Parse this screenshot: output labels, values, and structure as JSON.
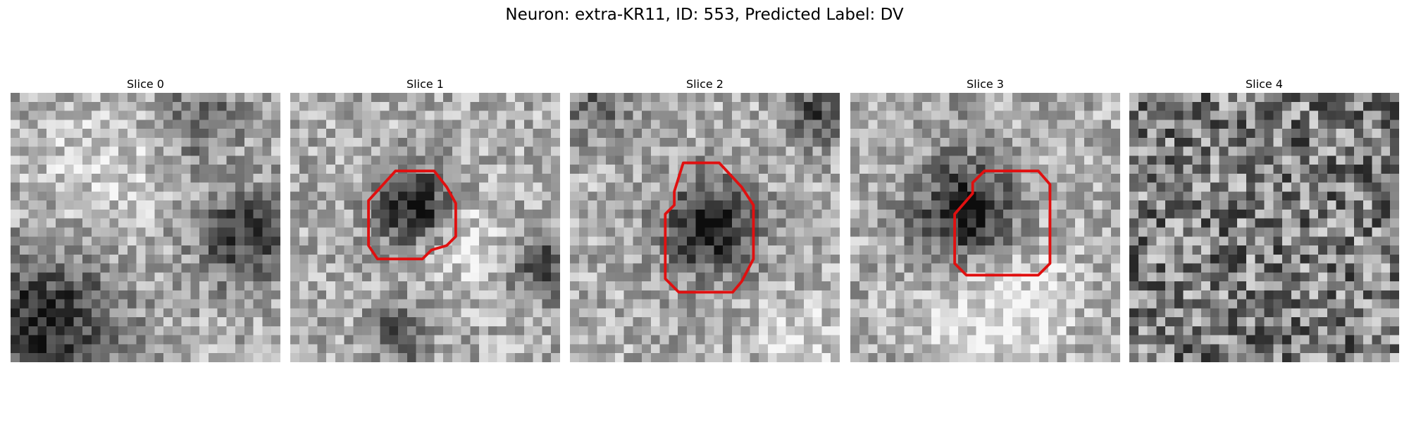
{
  "title": "Neuron: extra-KR11, ID: 553, Predicted Label: DV",
  "panels": [
    {
      "label": "Slice 0"
    },
    {
      "label": "Slice 1"
    },
    {
      "label": "Slice 2"
    },
    {
      "label": "Slice 3"
    },
    {
      "label": "Slice 4"
    }
  ]
}
